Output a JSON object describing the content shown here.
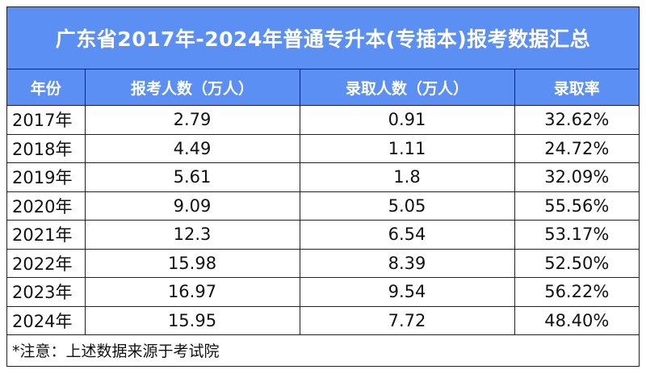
{
  "title": "广东省2017年-2024年普通专升本(专插本)报考数据汇总",
  "headers": [
    "年份",
    "报考人数（万人）",
    "录取人数（万人）",
    "录取率"
  ],
  "rows": [
    [
      "2017年",
      "2.79",
      "0.91",
      "32.62%"
    ],
    [
      "2018年",
      "4.49",
      "1.11",
      "24.72%"
    ],
    [
      "2019年",
      "5.61",
      "1.8",
      "32.09%"
    ],
    [
      "2020年",
      "9.09",
      "5.05",
      "55.56%"
    ],
    [
      "2021年",
      "12.3",
      "6.54",
      "53.17%"
    ],
    [
      "2022年",
      "15.98",
      "8.39",
      "52.50%"
    ],
    [
      "2023年",
      "16.97",
      "9.54",
      "56.22%"
    ],
    [
      "2024年",
      "15.95",
      "7.72",
      "48.40%"
    ]
  ],
  "note": "*注意：上述数据来源于考试院",
  "colors": {
    "header_bg": "#5b8ff3",
    "header_text": "#ffffff",
    "border": "#222222"
  }
}
